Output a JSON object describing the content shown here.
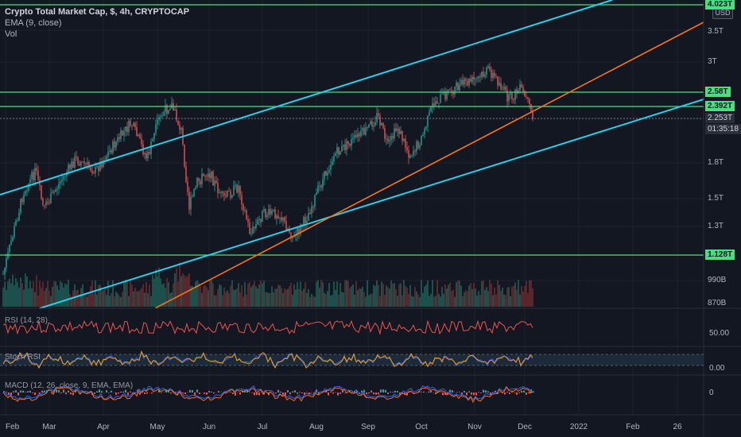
{
  "header": {
    "symbol_line": "Crypto Total Market Cap, $, 4h, CRYPTOCAP",
    "ema_label": "EMA (9, close)",
    "vol_label": "Vol",
    "currency_button": "USD"
  },
  "price_axis": {
    "labels": [
      {
        "text": "4.023T",
        "kind": "green"
      },
      {
        "text": "3.5T",
        "kind": "plain"
      },
      {
        "text": "3T",
        "kind": "plain"
      },
      {
        "text": "2.58T",
        "kind": "green"
      },
      {
        "text": "2.392T",
        "kind": "green"
      },
      {
        "text": "2.253T",
        "kind": "current"
      },
      {
        "text": "01:35:18",
        "kind": "countdown"
      },
      {
        "text": "1.8T",
        "kind": "plain"
      },
      {
        "text": "1.5T",
        "kind": "plain"
      },
      {
        "text": "1.3T",
        "kind": "plain"
      },
      {
        "text": "1.128T",
        "kind": "green"
      },
      {
        "text": "990B",
        "kind": "plain"
      },
      {
        "text": "870B",
        "kind": "plain"
      }
    ]
  },
  "indicators": {
    "rsi_label": "RSI (14, 28)",
    "rsi_axis": "50.00",
    "stoch_label": "Stoch RSI",
    "stoch_axis": "0.00",
    "macd_label": "MACD (12, 26, close, 9, EMA, EMA)",
    "macd_axis": "0"
  },
  "time_axis": [
    "Feb",
    "Mar",
    "Apr",
    "May",
    "Jun",
    "Jul",
    "Aug",
    "Sep",
    "Oct",
    "Nov",
    "Dec",
    "2022",
    "Feb",
    "26"
  ],
  "colors": {
    "background": "#131722",
    "grid": "#1e222d",
    "up": "#26a69a",
    "down": "#ef5350",
    "channel": "#22d3ee",
    "trend": "#f97316",
    "level": "#4ade80"
  }
}
